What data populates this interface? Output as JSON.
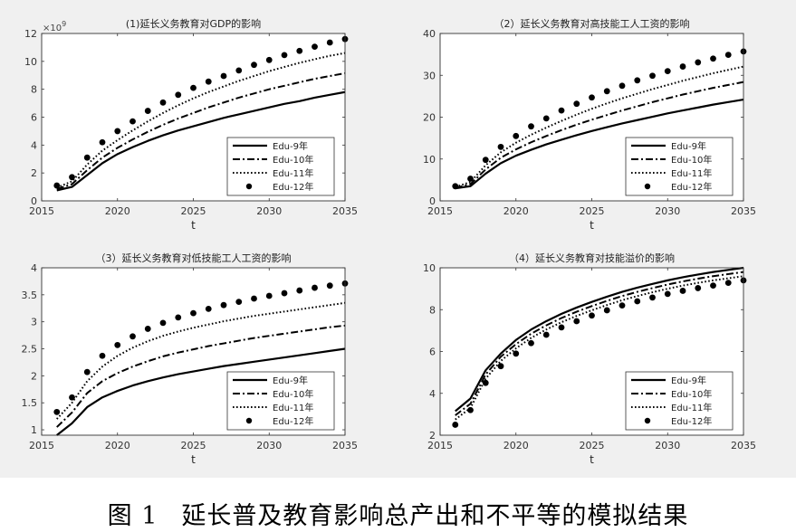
{
  "caption": {
    "label": "图 1",
    "text": "延长普及教育影响总产出和不平等的模拟结果"
  },
  "chart_data": [
    {
      "type": "line",
      "title": "(1)延长义务教育对GDP的影响",
      "xlabel": "t",
      "ylabel": "",
      "xlim": [
        2015,
        2035
      ],
      "ylim": [
        0,
        12
      ],
      "xticks": [
        2015,
        2020,
        2025,
        2030,
        2035
      ],
      "yticks": [
        0,
        2,
        4,
        6,
        8,
        10,
        12
      ],
      "ytick_labels": [
        "0",
        "2",
        "4",
        "6",
        "8",
        "10",
        "12"
      ],
      "yexponent": "×10^9",
      "legend": "bottom-right",
      "series": [
        {
          "name": "Edu-9年",
          "style": "solid",
          "x": [
            2016,
            2017,
            2018,
            2019,
            2020,
            2021,
            2022,
            2023,
            2024,
            2025,
            2026,
            2027,
            2028,
            2029,
            2030,
            2031,
            2032,
            2033,
            2034,
            2035
          ],
          "y": [
            0.75,
            1.0,
            1.85,
            2.7,
            3.35,
            3.85,
            4.3,
            4.7,
            5.05,
            5.35,
            5.65,
            5.95,
            6.2,
            6.45,
            6.7,
            6.95,
            7.15,
            7.4,
            7.6,
            7.8
          ]
        },
        {
          "name": "Edu-10年",
          "style": "dashdot",
          "x": [
            2016,
            2017,
            2018,
            2019,
            2020,
            2021,
            2022,
            2023,
            2024,
            2025,
            2026,
            2027,
            2028,
            2029,
            2030,
            2031,
            2032,
            2033,
            2034,
            2035
          ],
          "y": [
            0.85,
            1.2,
            2.2,
            3.1,
            3.8,
            4.4,
            4.95,
            5.45,
            5.9,
            6.3,
            6.7,
            7.05,
            7.4,
            7.7,
            8.0,
            8.25,
            8.5,
            8.75,
            8.95,
            9.15
          ]
        },
        {
          "name": "Edu-11年",
          "style": "dotted",
          "x": [
            2016,
            2017,
            2018,
            2019,
            2020,
            2021,
            2022,
            2023,
            2024,
            2025,
            2026,
            2027,
            2028,
            2029,
            2030,
            2031,
            2032,
            2033,
            2034,
            2035
          ],
          "y": [
            0.95,
            1.4,
            2.6,
            3.6,
            4.35,
            5.05,
            5.7,
            6.3,
            6.85,
            7.35,
            7.8,
            8.2,
            8.6,
            8.95,
            9.3,
            9.6,
            9.9,
            10.15,
            10.4,
            10.6
          ]
        },
        {
          "name": "Edu-12年",
          "style": "markers",
          "x": [
            2016,
            2017,
            2018,
            2019,
            2020,
            2021,
            2022,
            2023,
            2024,
            2025,
            2026,
            2027,
            2028,
            2029,
            2030,
            2031,
            2032,
            2033,
            2034,
            2035
          ],
          "y": [
            1.1,
            1.7,
            3.1,
            4.2,
            5.0,
            5.7,
            6.45,
            7.05,
            7.6,
            8.1,
            8.55,
            8.95,
            9.35,
            9.75,
            10.1,
            10.45,
            10.75,
            11.05,
            11.35,
            11.6
          ]
        }
      ]
    },
    {
      "type": "line",
      "title": "（2）延长义务教育对高技能工人工资的影响",
      "xlabel": "t",
      "ylabel": "",
      "xlim": [
        2015,
        2035
      ],
      "ylim": [
        0,
        40
      ],
      "xticks": [
        2015,
        2020,
        2025,
        2030,
        2035
      ],
      "yticks": [
        0,
        10,
        20,
        30,
        40
      ],
      "ytick_labels": [
        "0",
        "10",
        "20",
        "30",
        "40"
      ],
      "legend": "bottom-right",
      "series": [
        {
          "name": "Edu-9年",
          "style": "solid",
          "x": [
            2016,
            2017,
            2018,
            2019,
            2020,
            2021,
            2022,
            2023,
            2024,
            2025,
            2026,
            2027,
            2028,
            2029,
            2030,
            2031,
            2032,
            2033,
            2034,
            2035
          ],
          "y": [
            3.0,
            3.5,
            6.5,
            9.0,
            10.8,
            12.2,
            13.5,
            14.6,
            15.7,
            16.7,
            17.6,
            18.5,
            19.3,
            20.1,
            20.9,
            21.6,
            22.3,
            23.0,
            23.6,
            24.2
          ]
        },
        {
          "name": "Edu-10年",
          "style": "dashdot",
          "x": [
            2016,
            2017,
            2018,
            2019,
            2020,
            2021,
            2022,
            2023,
            2024,
            2025,
            2026,
            2027,
            2028,
            2029,
            2030,
            2031,
            2032,
            2033,
            2034,
            2035
          ],
          "y": [
            3.1,
            4.0,
            7.5,
            10.3,
            12.3,
            14.0,
            15.5,
            16.9,
            18.2,
            19.4,
            20.5,
            21.6,
            22.6,
            23.6,
            24.5,
            25.4,
            26.2,
            27.0,
            27.7,
            28.4
          ]
        },
        {
          "name": "Edu-11年",
          "style": "dotted",
          "x": [
            2016,
            2017,
            2018,
            2019,
            2020,
            2021,
            2022,
            2023,
            2024,
            2025,
            2026,
            2027,
            2028,
            2029,
            2030,
            2031,
            2032,
            2033,
            2034,
            2035
          ],
          "y": [
            3.3,
            4.5,
            8.5,
            11.6,
            13.9,
            15.8,
            17.5,
            19.1,
            20.6,
            22.0,
            23.3,
            24.5,
            25.6,
            26.7,
            27.7,
            28.7,
            29.6,
            30.5,
            31.3,
            32.1
          ]
        },
        {
          "name": "Edu-12年",
          "style": "markers",
          "x": [
            2016,
            2017,
            2018,
            2019,
            2020,
            2021,
            2022,
            2023,
            2024,
            2025,
            2026,
            2027,
            2028,
            2029,
            2030,
            2031,
            2032,
            2033,
            2034,
            2035
          ],
          "y": [
            3.5,
            5.3,
            9.8,
            12.9,
            15.5,
            17.8,
            19.7,
            21.6,
            23.2,
            24.7,
            26.2,
            27.5,
            28.8,
            29.9,
            31.0,
            32.1,
            33.1,
            34.0,
            34.9,
            35.7
          ]
        }
      ]
    },
    {
      "type": "line",
      "title": "（3）延长义务教育对低技能工人工资的影响",
      "xlabel": "t",
      "ylabel": "",
      "xlim": [
        2015,
        2035
      ],
      "ylim": [
        0.9,
        4
      ],
      "xticks": [
        2015,
        2020,
        2025,
        2030,
        2035
      ],
      "yticks": [
        1,
        1.5,
        2,
        2.5,
        3,
        3.5,
        4
      ],
      "ytick_labels": [
        "1",
        "1.5",
        "2",
        "2.5",
        "3",
        "3.5",
        "4"
      ],
      "legend": "bottom-right",
      "series": [
        {
          "name": "Edu-9年",
          "style": "solid",
          "x": [
            2016,
            2017,
            2018,
            2019,
            2020,
            2021,
            2022,
            2023,
            2024,
            2025,
            2026,
            2027,
            2028,
            2029,
            2030,
            2031,
            2032,
            2033,
            2034,
            2035
          ],
          "y": [
            0.9,
            1.12,
            1.42,
            1.6,
            1.72,
            1.82,
            1.9,
            1.97,
            2.03,
            2.08,
            2.13,
            2.18,
            2.22,
            2.26,
            2.3,
            2.34,
            2.38,
            2.42,
            2.46,
            2.5
          ]
        },
        {
          "name": "Edu-10年",
          "style": "dashdot",
          "x": [
            2016,
            2017,
            2018,
            2019,
            2020,
            2021,
            2022,
            2023,
            2024,
            2025,
            2026,
            2027,
            2028,
            2029,
            2030,
            2031,
            2032,
            2033,
            2034,
            2035
          ],
          "y": [
            1.05,
            1.32,
            1.68,
            1.9,
            2.05,
            2.17,
            2.27,
            2.36,
            2.43,
            2.49,
            2.55,
            2.6,
            2.65,
            2.7,
            2.74,
            2.78,
            2.82,
            2.86,
            2.9,
            2.93
          ]
        },
        {
          "name": "Edu-11年",
          "style": "dotted",
          "x": [
            2016,
            2017,
            2018,
            2019,
            2020,
            2021,
            2022,
            2023,
            2024,
            2025,
            2026,
            2027,
            2028,
            2029,
            2030,
            2031,
            2032,
            2033,
            2034,
            2035
          ],
          "y": [
            1.2,
            1.5,
            1.9,
            2.17,
            2.37,
            2.52,
            2.64,
            2.74,
            2.82,
            2.89,
            2.95,
            3.01,
            3.06,
            3.11,
            3.15,
            3.19,
            3.23,
            3.27,
            3.31,
            3.35
          ]
        },
        {
          "name": "Edu-12年",
          "style": "markers",
          "x": [
            2016,
            2017,
            2018,
            2019,
            2020,
            2021,
            2022,
            2023,
            2024,
            2025,
            2026,
            2027,
            2028,
            2029,
            2030,
            2031,
            2032,
            2033,
            2034,
            2035
          ],
          "y": [
            1.33,
            1.6,
            2.07,
            2.37,
            2.57,
            2.73,
            2.87,
            2.98,
            3.08,
            3.16,
            3.24,
            3.31,
            3.37,
            3.43,
            3.48,
            3.53,
            3.58,
            3.63,
            3.67,
            3.71
          ]
        }
      ]
    },
    {
      "type": "line",
      "title": "（4）延长义务教育对技能溢价的影响",
      "xlabel": "t",
      "ylabel": "",
      "xlim": [
        2015,
        2035
      ],
      "ylim": [
        2,
        10
      ],
      "xticks": [
        2015,
        2020,
        2025,
        2030,
        2035
      ],
      "yticks": [
        2,
        4,
        6,
        8,
        10
      ],
      "ytick_labels": [
        "2",
        "4",
        "6",
        "8",
        "10"
      ],
      "legend": "bottom-right",
      "series": [
        {
          "name": "Edu-9年",
          "style": "solid",
          "x": [
            2016,
            2017,
            2018,
            2019,
            2020,
            2021,
            2022,
            2023,
            2024,
            2025,
            2026,
            2027,
            2028,
            2029,
            2030,
            2031,
            2032,
            2033,
            2034,
            2035
          ],
          "y": [
            3.15,
            3.75,
            5.1,
            5.9,
            6.55,
            7.05,
            7.45,
            7.8,
            8.1,
            8.37,
            8.62,
            8.85,
            9.05,
            9.23,
            9.4,
            9.55,
            9.68,
            9.8,
            9.9,
            10.0
          ]
        },
        {
          "name": "Edu-10年",
          "style": "dashdot",
          "x": [
            2016,
            2017,
            2018,
            2019,
            2020,
            2021,
            2022,
            2023,
            2024,
            2025,
            2026,
            2027,
            2028,
            2029,
            2030,
            2031,
            2032,
            2033,
            2034,
            2035
          ],
          "y": [
            2.95,
            3.5,
            4.9,
            5.75,
            6.35,
            6.85,
            7.25,
            7.6,
            7.9,
            8.17,
            8.42,
            8.65,
            8.85,
            9.03,
            9.2,
            9.35,
            9.48,
            9.6,
            9.7,
            9.8
          ]
        },
        {
          "name": "Edu-11年",
          "style": "dotted",
          "x": [
            2016,
            2017,
            2018,
            2019,
            2020,
            2021,
            2022,
            2023,
            2024,
            2025,
            2026,
            2027,
            2028,
            2029,
            2030,
            2031,
            2032,
            2033,
            2034,
            2035
          ],
          "y": [
            2.75,
            3.3,
            4.7,
            5.55,
            6.15,
            6.65,
            7.05,
            7.4,
            7.7,
            7.97,
            8.22,
            8.45,
            8.65,
            8.83,
            9.0,
            9.15,
            9.28,
            9.4,
            9.5,
            9.6
          ]
        },
        {
          "name": "Edu-12年",
          "style": "markers",
          "x": [
            2016,
            2017,
            2018,
            2019,
            2020,
            2021,
            2022,
            2023,
            2024,
            2025,
            2026,
            2027,
            2028,
            2029,
            2030,
            2031,
            2032,
            2033,
            2034,
            2035
          ],
          "y": [
            2.5,
            3.2,
            4.5,
            5.3,
            5.9,
            6.4,
            6.8,
            7.15,
            7.45,
            7.72,
            7.97,
            8.2,
            8.4,
            8.58,
            8.75,
            8.9,
            9.03,
            9.15,
            9.28,
            9.4
          ]
        }
      ]
    }
  ]
}
